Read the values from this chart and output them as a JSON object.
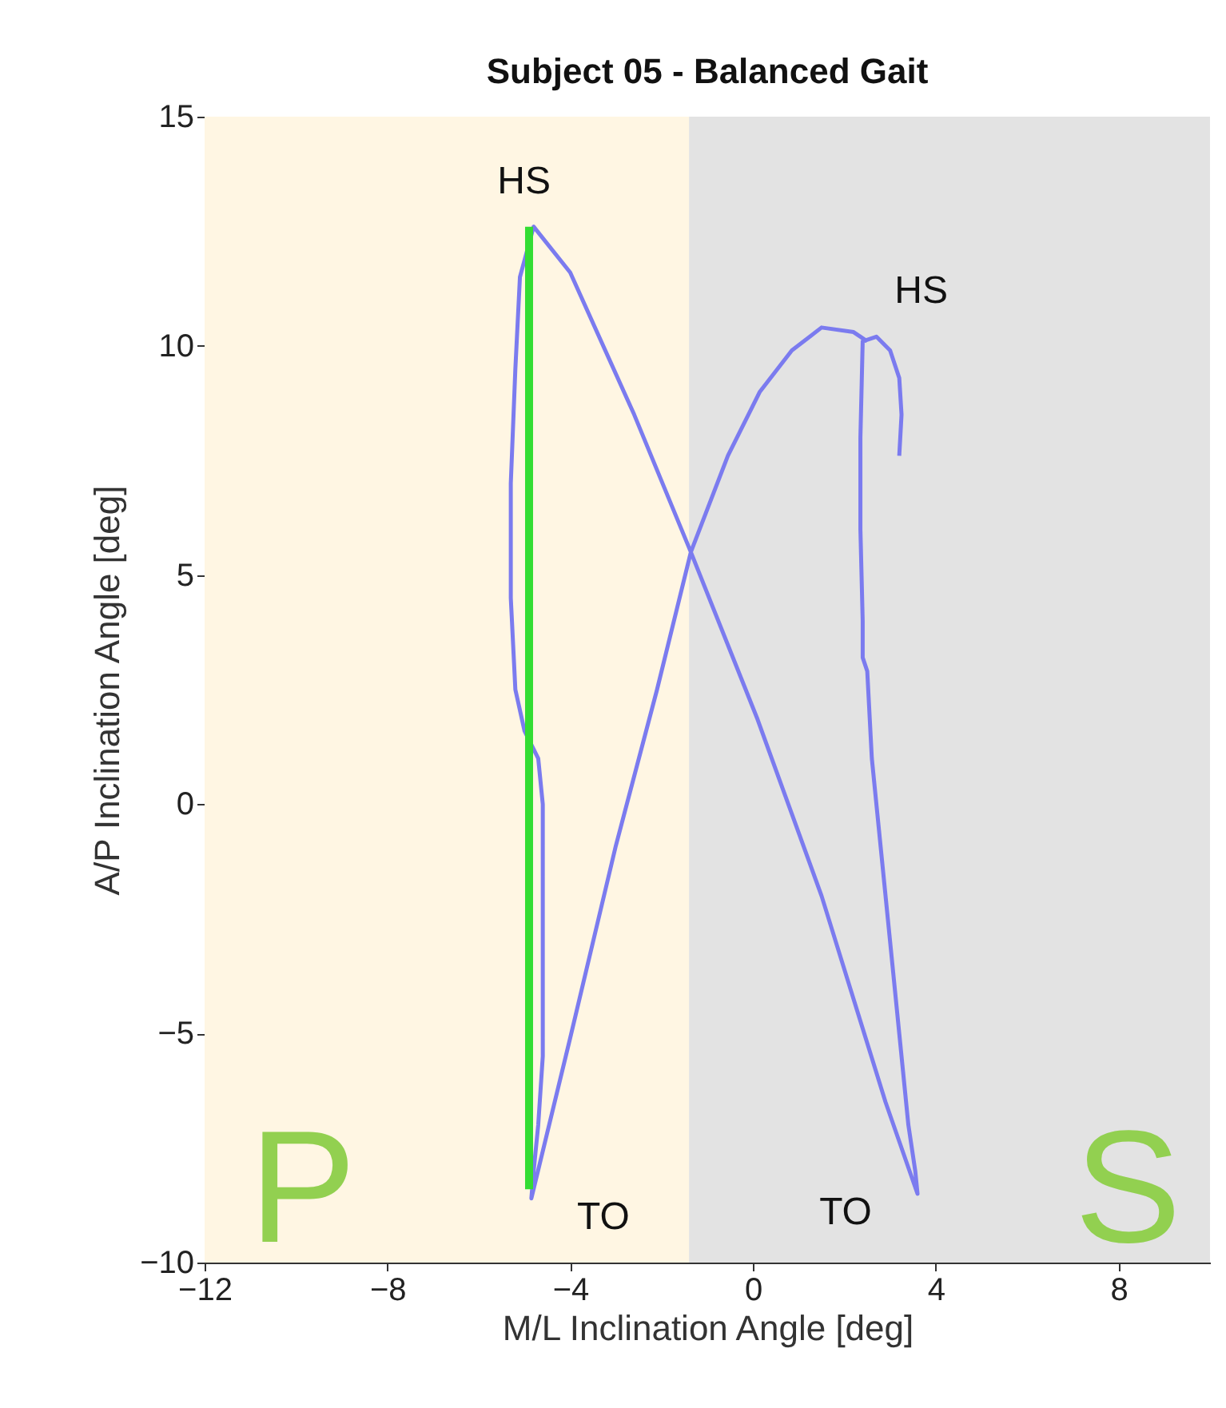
{
  "chart_data": {
    "type": "line",
    "title": "Subject 05 - Balanced Gait",
    "xlabel": "M/L Inclination Angle [deg]",
    "ylabel": "A/P Inclination Angle [deg]",
    "xlim": [
      -12,
      10
    ],
    "ylim": [
      -10,
      15
    ],
    "xticks": [
      -12,
      -8,
      -4,
      0,
      4,
      8
    ],
    "yticks": [
      -10,
      -5,
      0,
      5,
      10,
      15
    ],
    "grid": false,
    "bands": [
      {
        "axis": "x",
        "from": -12,
        "to": -1.4,
        "label": "P",
        "color": "#fff6e3"
      },
      {
        "axis": "x",
        "from": -1.4,
        "to": 10,
        "label": "S",
        "color": "#e3e3e3"
      }
    ],
    "series": [
      {
        "color": "#7b7bef",
        "x": [
          3.2,
          3.25,
          3.2,
          3.0,
          2.7,
          2.4,
          2.35,
          2.35,
          2.4,
          2.4,
          2.5,
          2.6,
          2.8,
          3.0,
          3.2,
          3.4,
          3.55,
          3.6,
          2.9,
          1.5,
          0.1,
          -1.36,
          -2.6,
          -4.0,
          -4.8,
          -5.1,
          -5.2,
          -5.3,
          -5.3,
          -5.2,
          -5.0,
          -4.7,
          -4.6,
          -4.6,
          -4.6,
          -4.6,
          -4.7,
          -4.8,
          -4.85,
          -4.0,
          -3.0,
          -2.1,
          -1.36,
          -0.55,
          0.15,
          0.85,
          1.5,
          2.2,
          2.5
        ],
        "values": [
          7.6,
          8.5,
          9.3,
          9.9,
          10.2,
          10.1,
          8,
          6,
          4,
          3.2,
          2.9,
          1,
          -1,
          -3,
          -5,
          -7,
          -8,
          -8.5,
          -6.5,
          -2.0,
          1.85,
          5.5,
          8.5,
          11.6,
          12.6,
          11.5,
          9.5,
          7,
          4.5,
          2.5,
          1.6,
          1.0,
          0,
          -2,
          -4,
          -5.5,
          -7,
          -8,
          -8.6,
          -5.1,
          -0.9,
          2.5,
          5.5,
          7.6,
          9.0,
          9.9,
          10.4,
          10.3,
          10.1
        ]
      },
      {
        "color": "#33dd33",
        "x": [
          -4.9,
          -4.9
        ],
        "values": [
          12.6,
          -8.4
        ]
      }
    ],
    "annotations": [
      {
        "text": "HS",
        "x": -4.8,
        "y": 12.6
      },
      {
        "text": "HS",
        "x": 2.7,
        "y": 10.2
      },
      {
        "text": "TO",
        "x": -4.85,
        "y": -8.6
      },
      {
        "text": "TO",
        "x": 3.6,
        "y": -8.5
      }
    ]
  }
}
